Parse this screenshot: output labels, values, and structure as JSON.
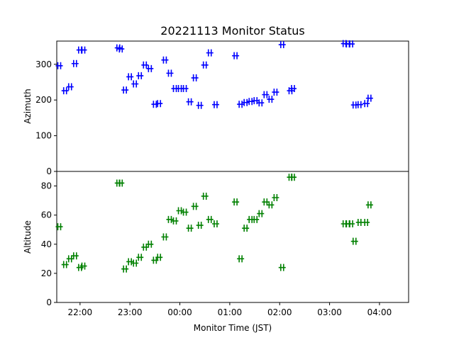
{
  "chart_data": {
    "type": "scatter",
    "title": "20221113 Monitor Status",
    "xlabel": "Monitor Time (JST)",
    "x_range": [
      "21:32",
      "04:35"
    ],
    "x_ticks": [
      "22:00",
      "23:00",
      "00:00",
      "01:00",
      "02:00",
      "03:00",
      "04:00"
    ],
    "marker": "+",
    "panels": [
      {
        "ylabel": "Azimuth",
        "color": "#0000ff",
        "ylim": [
          0,
          365
        ],
        "y_ticks": [
          0,
          100,
          200,
          300
        ],
        "points": [
          [
            "21:35",
            296
          ],
          [
            "21:42",
            226
          ],
          [
            "21:48",
            237
          ],
          [
            "21:54",
            302
          ],
          [
            "22:00",
            340
          ],
          [
            "22:04",
            340
          ],
          [
            "22:46",
            346
          ],
          [
            "22:49",
            343
          ],
          [
            "22:54",
            228
          ],
          [
            "23:00",
            265
          ],
          [
            "23:06",
            245
          ],
          [
            "23:12",
            268
          ],
          [
            "23:18",
            298
          ],
          [
            "23:24",
            288
          ],
          [
            "23:30",
            188
          ],
          [
            "23:35",
            190
          ],
          [
            "23:42",
            312
          ],
          [
            "23:48",
            275
          ],
          [
            "23:54",
            232
          ],
          [
            "00:00",
            232
          ],
          [
            "00:06",
            232
          ],
          [
            "00:12",
            195
          ],
          [
            "00:18",
            262
          ],
          [
            "00:24",
            185
          ],
          [
            "00:30",
            298
          ],
          [
            "00:36",
            332
          ],
          [
            "00:43",
            187
          ],
          [
            "01:07",
            324
          ],
          [
            "01:13",
            188
          ],
          [
            "01:19",
            193
          ],
          [
            "01:25",
            196
          ],
          [
            "01:31",
            198
          ],
          [
            "01:37",
            192
          ],
          [
            "01:43",
            215
          ],
          [
            "01:49",
            202
          ],
          [
            "01:55",
            222
          ],
          [
            "02:03",
            355
          ],
          [
            "02:13",
            226
          ],
          [
            "02:16",
            232
          ],
          [
            "03:18",
            358
          ],
          [
            "03:22",
            357
          ],
          [
            "03:26",
            357
          ],
          [
            "03:30",
            186
          ],
          [
            "03:36",
            187
          ],
          [
            "03:44",
            190
          ],
          [
            "03:48",
            205
          ]
        ]
      },
      {
        "ylabel": "Altitude",
        "color": "#008000",
        "ylim": [
          0,
          90
        ],
        "y_ticks": [
          0,
          20,
          40,
          60,
          80
        ],
        "points": [
          [
            "21:35",
            52
          ],
          [
            "21:42",
            26
          ],
          [
            "21:48",
            30
          ],
          [
            "21:54",
            32
          ],
          [
            "22:00",
            24
          ],
          [
            "22:04",
            25
          ],
          [
            "22:46",
            82
          ],
          [
            "22:49",
            82
          ],
          [
            "22:54",
            23
          ],
          [
            "23:00",
            28
          ],
          [
            "23:06",
            27
          ],
          [
            "23:12",
            31
          ],
          [
            "23:18",
            38
          ],
          [
            "23:24",
            40
          ],
          [
            "23:30",
            29
          ],
          [
            "23:35",
            31
          ],
          [
            "23:42",
            45
          ],
          [
            "23:48",
            57
          ],
          [
            "23:54",
            56
          ],
          [
            "00:00",
            63
          ],
          [
            "00:06",
            62
          ],
          [
            "00:12",
            51
          ],
          [
            "00:18",
            66
          ],
          [
            "00:24",
            53
          ],
          [
            "00:30",
            73
          ],
          [
            "00:36",
            57
          ],
          [
            "00:43",
            54
          ],
          [
            "01:07",
            69
          ],
          [
            "01:13",
            30
          ],
          [
            "01:19",
            51
          ],
          [
            "01:25",
            57
          ],
          [
            "01:31",
            57
          ],
          [
            "01:37",
            61
          ],
          [
            "01:43",
            69
          ],
          [
            "01:49",
            67
          ],
          [
            "01:55",
            72
          ],
          [
            "02:03",
            24
          ],
          [
            "02:13",
            86
          ],
          [
            "02:16",
            86
          ],
          [
            "03:18",
            54
          ],
          [
            "03:22",
            54
          ],
          [
            "03:26",
            54
          ],
          [
            "03:30",
            42
          ],
          [
            "03:36",
            55
          ],
          [
            "03:44",
            55
          ],
          [
            "03:48",
            67
          ]
        ]
      }
    ]
  }
}
